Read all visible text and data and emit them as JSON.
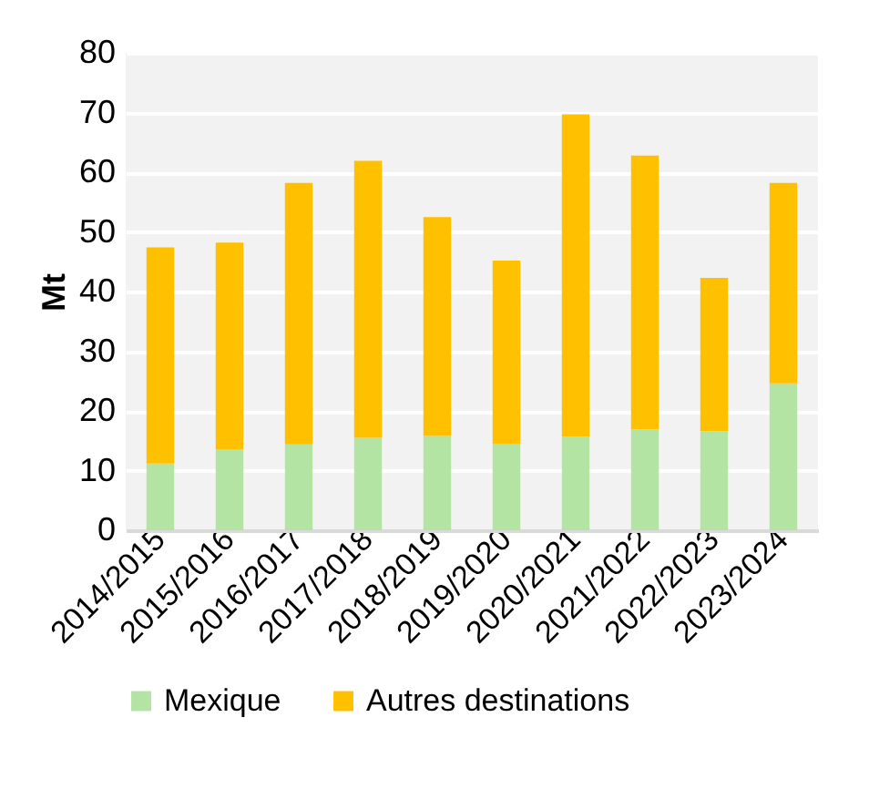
{
  "chart_data": {
    "type": "bar",
    "ylabel": "Mt",
    "categories": [
      "2014/2015",
      "2015/2016",
      "2016/2017",
      "2017/2018",
      "2018/2019",
      "2019/2020",
      "2020/2021",
      "2021/2022",
      "2022/2023",
      "2023/2024"
    ],
    "series": [
      {
        "name": "Mexique",
        "color": "#b4e4a4",
        "values": [
          11.2,
          13.5,
          14.4,
          15.5,
          15.8,
          14.5,
          15.7,
          16.9,
          16.6,
          24.6
        ]
      },
      {
        "name": "Autres destinations",
        "color": "#ffc000",
        "values": [
          36.2,
          34.7,
          43.8,
          46.4,
          36.7,
          30.7,
          54.0,
          45.9,
          25.7,
          33.6
        ]
      }
    ],
    "stacked": true,
    "ylim": [
      0,
      80
    ],
    "yticks": [
      0,
      10,
      20,
      30,
      40,
      50,
      60,
      70,
      80
    ],
    "grid": "y",
    "legend": "bottom"
  }
}
